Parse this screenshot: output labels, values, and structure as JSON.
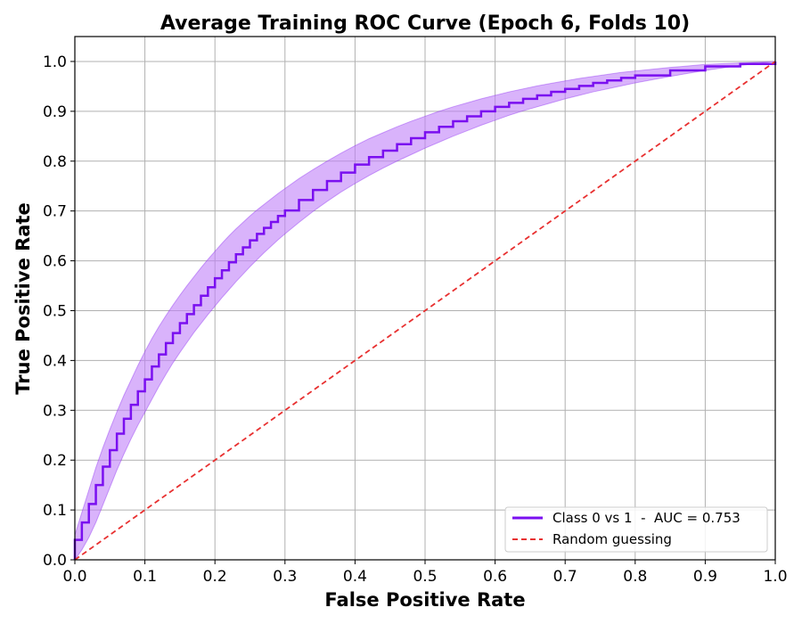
{
  "chart_data": {
    "type": "line",
    "title": "Average Training ROC Curve (Epoch 6, Folds 10)",
    "xlabel": "False Positive Rate",
    "ylabel": "True Positive Rate",
    "xlim": [
      0.0,
      1.0
    ],
    "ylim": [
      0.0,
      1.05
    ],
    "xticks": [
      "0.0",
      "0.1",
      "0.2",
      "0.3",
      "0.4",
      "0.5",
      "0.6",
      "0.7",
      "0.8",
      "0.9",
      "1.0"
    ],
    "yticks": [
      "0.0",
      "0.1",
      "0.2",
      "0.3",
      "0.4",
      "0.5",
      "0.6",
      "0.7",
      "0.8",
      "0.9",
      "1.0"
    ],
    "grid": true,
    "legend_position": "lower-right",
    "series": [
      {
        "name": "Class 0 vs 1  -  AUC = 0.753",
        "style": "step",
        "color": "#7a0ff0",
        "band_color": "#c080f8",
        "x": [
          0.0,
          0.01,
          0.02,
          0.03,
          0.04,
          0.05,
          0.06,
          0.07,
          0.08,
          0.09,
          0.1,
          0.11,
          0.12,
          0.13,
          0.14,
          0.15,
          0.16,
          0.17,
          0.18,
          0.19,
          0.2,
          0.21,
          0.22,
          0.23,
          0.24,
          0.25,
          0.26,
          0.27,
          0.28,
          0.29,
          0.3,
          0.32,
          0.34,
          0.36,
          0.38,
          0.4,
          0.42,
          0.44,
          0.46,
          0.48,
          0.5,
          0.52,
          0.54,
          0.56,
          0.58,
          0.6,
          0.62,
          0.64,
          0.66,
          0.68,
          0.7,
          0.72,
          0.74,
          0.76,
          0.78,
          0.8,
          0.85,
          0.9,
          0.95,
          1.0
        ],
        "y": [
          0.04,
          0.075,
          0.112,
          0.15,
          0.187,
          0.22,
          0.253,
          0.283,
          0.311,
          0.338,
          0.362,
          0.388,
          0.412,
          0.435,
          0.455,
          0.475,
          0.493,
          0.511,
          0.53,
          0.547,
          0.565,
          0.581,
          0.597,
          0.613,
          0.627,
          0.641,
          0.654,
          0.666,
          0.678,
          0.69,
          0.701,
          0.722,
          0.742,
          0.76,
          0.777,
          0.793,
          0.808,
          0.821,
          0.834,
          0.846,
          0.858,
          0.869,
          0.88,
          0.89,
          0.9,
          0.909,
          0.917,
          0.925,
          0.932,
          0.939,
          0.945,
          0.951,
          0.957,
          0.962,
          0.967,
          0.972,
          0.982,
          0.99,
          0.995,
          1.0
        ],
        "band_upper": [
          0.05,
          0.095,
          0.14,
          0.185,
          0.225,
          0.262,
          0.297,
          0.33,
          0.36,
          0.39,
          0.418,
          0.444,
          0.468,
          0.49,
          0.511,
          0.531,
          0.55,
          0.568,
          0.586,
          0.603,
          0.619,
          0.635,
          0.65,
          0.664,
          0.677,
          0.69,
          0.702,
          0.713,
          0.724,
          0.735,
          0.745,
          0.765,
          0.783,
          0.8,
          0.816,
          0.831,
          0.845,
          0.857,
          0.869,
          0.88,
          0.89,
          0.9,
          0.909,
          0.917,
          0.925,
          0.932,
          0.939,
          0.945,
          0.951,
          0.956,
          0.961,
          0.966,
          0.97,
          0.974,
          0.978,
          0.981,
          0.988,
          0.994,
          0.997,
          1.0
        ],
        "band_lower": [
          0.0,
          0.02,
          0.045,
          0.075,
          0.11,
          0.145,
          0.18,
          0.212,
          0.242,
          0.27,
          0.296,
          0.322,
          0.348,
          0.372,
          0.395,
          0.416,
          0.436,
          0.456,
          0.474,
          0.492,
          0.509,
          0.526,
          0.542,
          0.558,
          0.573,
          0.588,
          0.602,
          0.616,
          0.629,
          0.642,
          0.654,
          0.677,
          0.699,
          0.719,
          0.738,
          0.755,
          0.771,
          0.786,
          0.8,
          0.813,
          0.826,
          0.838,
          0.85,
          0.861,
          0.872,
          0.882,
          0.892,
          0.901,
          0.909,
          0.917,
          0.925,
          0.932,
          0.939,
          0.945,
          0.951,
          0.957,
          0.97,
          0.982,
          0.992,
          1.0
        ]
      },
      {
        "name": "Random guessing",
        "style": "dashed",
        "color": "#e83030",
        "x": [
          0.0,
          1.0
        ],
        "y": [
          0.0,
          1.0
        ]
      }
    ]
  }
}
